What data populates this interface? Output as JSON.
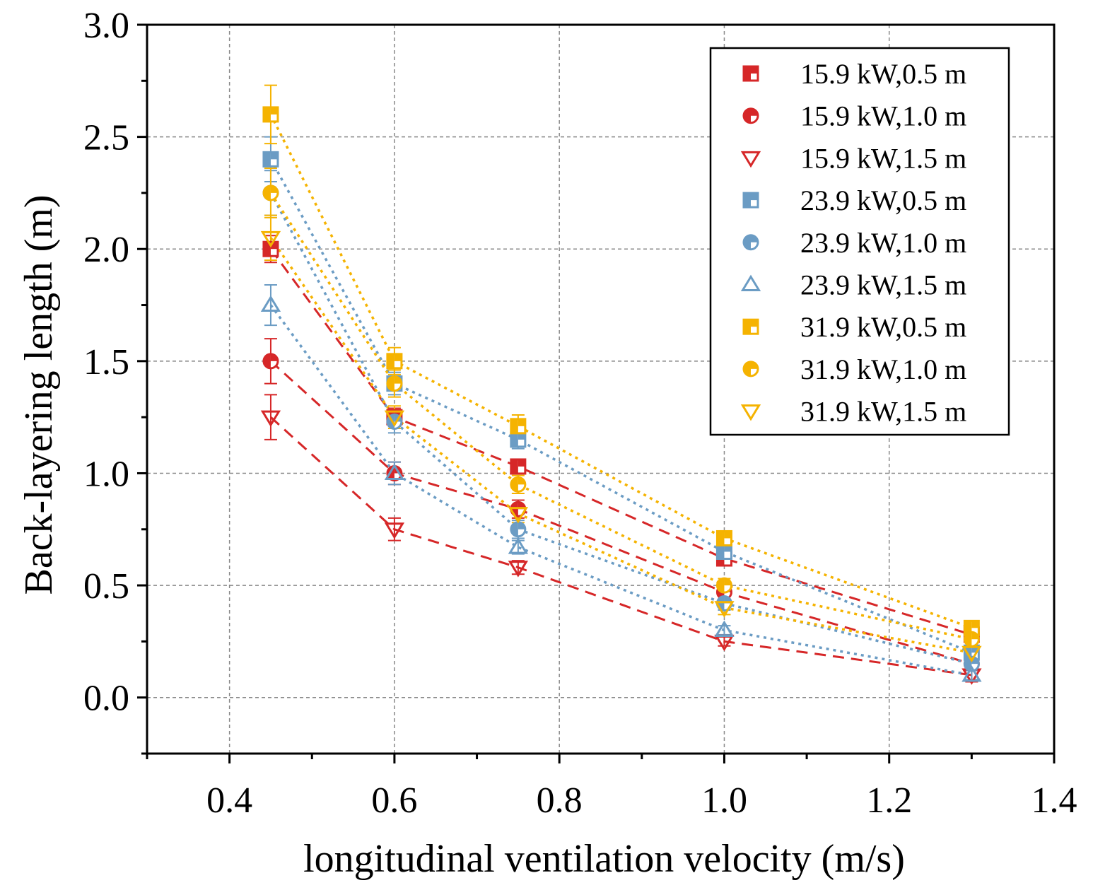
{
  "chart_data": {
    "type": "line",
    "title": "",
    "xlabel": "longitudinal ventilation velocity (m/s)",
    "ylabel": "Back-layering length (m)",
    "xlim": [
      0.3,
      1.4
    ],
    "ylim": [
      -0.25,
      3.0
    ],
    "xticks": [
      0.4,
      0.6,
      0.8,
      1.0,
      1.2,
      1.4
    ],
    "xtick_labels": [
      "0.4",
      "0.6",
      "0.8",
      "1.0",
      "1.2",
      "1.4"
    ],
    "yticks": [
      0.0,
      0.5,
      1.0,
      1.5,
      2.0,
      2.5,
      3.0
    ],
    "ytick_labels": [
      "0.0",
      "0.5",
      "1.0",
      "1.5",
      "2.0",
      "2.5",
      "3.0"
    ],
    "grid": true,
    "legend_position": "top-right",
    "x": [
      0.45,
      0.6,
      0.75,
      1.0,
      1.3
    ],
    "series": [
      {
        "name": "15.9 kW,0.5 m",
        "color": "#d62728",
        "marker": "square-half",
        "line": "dashed",
        "values": [
          2.0,
          1.25,
          1.03,
          0.62,
          0.28
        ],
        "errors": [
          0.06,
          0.04,
          0.03,
          0.03,
          0.02
        ]
      },
      {
        "name": "15.9 kW,1.0 m",
        "color": "#d62728",
        "marker": "circle-half",
        "line": "dashed",
        "values": [
          1.5,
          1.0,
          0.84,
          0.47,
          0.15
        ],
        "errors": [
          0.1,
          0.05,
          0.04,
          0.03,
          0.02
        ]
      },
      {
        "name": "15.9 kW,1.5 m",
        "color": "#d62728",
        "marker": "triangle-down",
        "line": "dashed",
        "values": [
          1.25,
          0.75,
          0.58,
          0.25,
          0.1
        ],
        "errors": [
          0.1,
          0.05,
          0.03,
          0.02,
          0.03
        ]
      },
      {
        "name": "23.9 kW,0.5 m",
        "color": "#6b9cc4",
        "marker": "square-half",
        "line": "dotted",
        "values": [
          2.4,
          1.4,
          1.15,
          0.65,
          0.2
        ],
        "errors": [
          0.1,
          0.05,
          0.04,
          0.03,
          0.02
        ]
      },
      {
        "name": "23.9 kW,1.0 m",
        "color": "#6b9cc4",
        "marker": "circle-half",
        "line": "dotted",
        "values": [
          2.25,
          1.23,
          0.75,
          0.42,
          0.15
        ],
        "errors": [
          0.1,
          0.05,
          0.04,
          0.03,
          0.02
        ]
      },
      {
        "name": "23.9 kW,1.5 m",
        "color": "#6b9cc4",
        "marker": "triangle-up",
        "line": "dotted",
        "values": [
          1.75,
          1.0,
          0.67,
          0.3,
          0.1
        ],
        "errors": [
          0.09,
          0.05,
          0.03,
          0.02,
          0.02
        ]
      },
      {
        "name": "31.9 kW,0.5 m",
        "color": "#f5b301",
        "marker": "square-half",
        "line": "dotted",
        "values": [
          2.6,
          1.5,
          1.21,
          0.71,
          0.31
        ],
        "errors": [
          0.13,
          0.06,
          0.05,
          0.03,
          0.02
        ]
      },
      {
        "name": "31.9 kW,1.0 m",
        "color": "#f5b301",
        "marker": "circle-half",
        "line": "dotted",
        "values": [
          2.25,
          1.4,
          0.95,
          0.5,
          0.26
        ],
        "errors": [
          0.11,
          0.06,
          0.04,
          0.03,
          0.02
        ]
      },
      {
        "name": "31.9 kW,1.5 m",
        "color": "#f5b301",
        "marker": "triangle-down",
        "line": "dotted",
        "values": [
          2.05,
          1.25,
          0.82,
          0.4,
          0.2
        ],
        "errors": [
          0.1,
          0.05,
          0.04,
          0.03,
          0.02
        ]
      }
    ]
  }
}
